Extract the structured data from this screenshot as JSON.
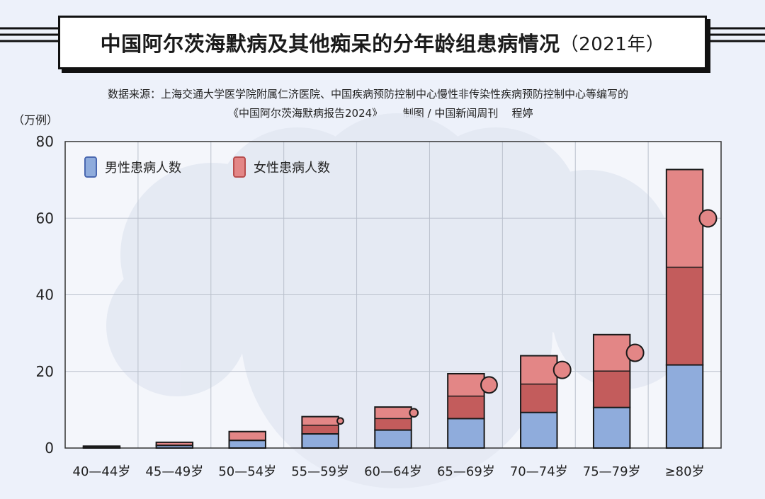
{
  "title": {
    "main": "中国阿尔茨海默病及其他痴呆的分年龄组患病情况",
    "year": "（2021年）"
  },
  "source": {
    "line1": "数据来源：上海交通大学医学院附属仁济医院、中国疾病预防控制中心慢性非传染性疾病预防控制中心等编写的",
    "line2": "《中国阿尔茨海默病报告2024》      制图 / 中国新闻周刊    程婷"
  },
  "colors": {
    "male": "#8facdc",
    "male_dark": "#4a68b0",
    "female": "#e38686",
    "female_dark": "#b84e4e",
    "outline": "#1a1a1a",
    "grid": "#b9c0cc",
    "plot_bg": "#f4f6fb",
    "cloud": "#e4e9f3"
  },
  "chart_data": {
    "type": "bar",
    "stacked": true,
    "ylabel": "（万例）",
    "ylim": [
      0,
      80
    ],
    "yticks": [
      0,
      20,
      40,
      60,
      80
    ],
    "grid": true,
    "legend_position": "top-left",
    "categories": [
      "40—44岁",
      "45—49岁",
      "50—54岁",
      "55—59岁",
      "60—64岁",
      "65—69岁",
      "70—74岁",
      "75—79岁",
      "≥80岁"
    ],
    "series": [
      {
        "name": "男性患病人数",
        "color": "#8facdc",
        "values": [
          0.2,
          0.7,
          2.0,
          3.7,
          4.7,
          7.7,
          9.3,
          10.6,
          21.7
        ]
      },
      {
        "name": "女性患病人数",
        "color": "#e38686",
        "values": [
          0.3,
          0.8,
          2.3,
          4.5,
          6.0,
          11.7,
          14.8,
          19.0,
          51.0
        ]
      }
    ]
  }
}
